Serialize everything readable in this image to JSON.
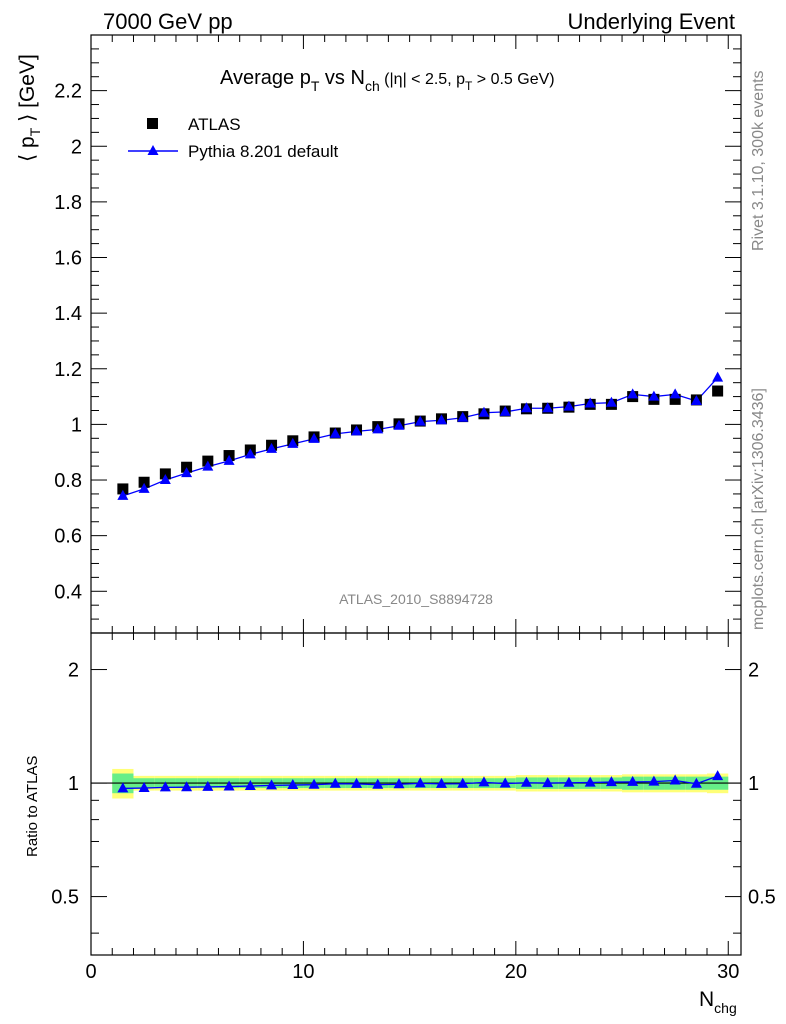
{
  "header": {
    "left": "7000 GeV pp",
    "right": "Underlying Event"
  },
  "side": {
    "rivet": "Rivet 3.1.10,  300k events",
    "mcplots": "mcplots.cern.ch [arXiv:1306.3436]"
  },
  "analysis_id": "ATLAS_2010_S8894728",
  "title": {
    "main": "Average p",
    "main_sub": "T",
    "vs": " vs N",
    "vs_sub": "ch",
    "cuts_a": " (|η| < 2.5, p",
    "cuts_sub": "T",
    "cuts_b": " > 0.5 GeV)"
  },
  "ylabel": {
    "open": "⟨ p",
    "sub": "T",
    "close": " ⟩ [GeV]"
  },
  "ratio_ylabel": "Ratio to ATLAS",
  "xlabel": {
    "main": "N",
    "sub": "chg"
  },
  "colors": {
    "data": "#000000",
    "mc": "#0000ff",
    "band_inner": "#66ee88",
    "band_outer": "#ffff77"
  },
  "chart_data": [
    {
      "type": "scatter",
      "title": "Average pT vs Nch (|η| < 2.5, pT > 0.5 GeV)",
      "xlim": [
        0,
        30.6
      ],
      "ylim": [
        0.25,
        2.4
      ],
      "yticks": [
        0.4,
        0.6,
        0.8,
        1,
        1.2,
        1.4,
        1.6,
        1.8,
        2,
        2.2
      ],
      "ytick_labels": [
        "0.4",
        "0.6",
        "0.8",
        "1",
        "1.2",
        "1.4",
        "1.6",
        "1.8",
        "2",
        "2.2"
      ],
      "series": [
        {
          "name": "ATLAS",
          "marker": "square",
          "x": [
            1.5,
            2.5,
            3.5,
            4.5,
            5.5,
            6.5,
            7.5,
            8.5,
            9.5,
            10.5,
            11.5,
            12.5,
            13.5,
            14.5,
            15.5,
            16.5,
            17.5,
            18.5,
            19.5,
            20.5,
            21.5,
            22.5,
            23.5,
            24.5,
            25.5,
            26.5,
            27.5,
            28.5,
            29.5
          ],
          "y": [
            0.768,
            0.792,
            0.822,
            0.846,
            0.868,
            0.888,
            0.908,
            0.925,
            0.941,
            0.955,
            0.969,
            0.98,
            0.992,
            1.002,
            1.012,
            1.02,
            1.028,
            1.038,
            1.048,
            1.056,
            1.058,
            1.062,
            1.072,
            1.072,
            1.1,
            1.09,
            1.09,
            1.088,
            1.12
          ]
        },
        {
          "name": "Pythia 8.201 default",
          "marker": "triangle",
          "x": [
            1.5,
            2.5,
            3.5,
            4.5,
            5.5,
            6.5,
            7.5,
            8.5,
            9.5,
            10.5,
            11.5,
            12.5,
            13.5,
            14.5,
            15.5,
            16.5,
            17.5,
            18.5,
            19.5,
            20.5,
            21.5,
            22.5,
            23.5,
            24.5,
            25.5,
            26.5,
            27.5,
            28.5,
            29.5
          ],
          "y": [
            0.743,
            0.768,
            0.8,
            0.825,
            0.848,
            0.869,
            0.892,
            0.912,
            0.93,
            0.948,
            0.966,
            0.975,
            0.982,
            0.995,
            1.01,
            1.015,
            1.024,
            1.042,
            1.045,
            1.058,
            1.058,
            1.064,
            1.075,
            1.078,
            1.108,
            1.1,
            1.108,
            1.084,
            1.168
          ]
        }
      ],
      "legend": "top-left"
    },
    {
      "type": "line",
      "ylabel": "Ratio to ATLAS",
      "xlabel": "Nchg",
      "xlim": [
        0,
        30.6
      ],
      "ylim": [
        0.35,
        2.5
      ],
      "yscale": "log",
      "xticks": [
        0,
        10,
        20,
        30
      ],
      "xtick_labels": [
        "0",
        "10",
        "20",
        "30"
      ],
      "yticks": [
        0.5,
        1,
        2
      ],
      "ytick_labels": [
        "0.5",
        "1",
        "2"
      ],
      "series": [
        {
          "name": "Pythia 8.201 default",
          "x": [
            1.5,
            2.5,
            3.5,
            4.5,
            5.5,
            6.5,
            7.5,
            8.5,
            9.5,
            10.5,
            11.5,
            12.5,
            13.5,
            14.5,
            15.5,
            16.5,
            17.5,
            18.5,
            19.5,
            20.5,
            21.5,
            22.5,
            23.5,
            24.5,
            25.5,
            26.5,
            27.5,
            28.5,
            29.5
          ],
          "y": [
            0.968,
            0.97,
            0.974,
            0.975,
            0.977,
            0.979,
            0.982,
            0.986,
            0.988,
            0.99,
            0.996,
            0.995,
            0.99,
            0.993,
            0.998,
            0.995,
            0.996,
            1.004,
            0.997,
            1.002,
            1.0,
            1.002,
            1.003,
            1.006,
            1.007,
            1.009,
            1.016,
            0.996,
            1.043
          ]
        }
      ],
      "band": {
        "x_edges": [
          1,
          2,
          3,
          4,
          5,
          6,
          7,
          8,
          9,
          10,
          11,
          12,
          13,
          14,
          15,
          16,
          17,
          18,
          19,
          20,
          21,
          22,
          23,
          24,
          25,
          26,
          27,
          28,
          29,
          30
        ],
        "inner_halfwidth": [
          0.06,
          0.03,
          0.03,
          0.03,
          0.03,
          0.03,
          0.03,
          0.03,
          0.03,
          0.03,
          0.03,
          0.03,
          0.03,
          0.03,
          0.03,
          0.03,
          0.03,
          0.03,
          0.03,
          0.035,
          0.035,
          0.035,
          0.035,
          0.035,
          0.04,
          0.04,
          0.04,
          0.04,
          0.04
        ],
        "outer_halfwidth": [
          0.09,
          0.045,
          0.045,
          0.045,
          0.045,
          0.045,
          0.045,
          0.045,
          0.045,
          0.045,
          0.045,
          0.045,
          0.045,
          0.045,
          0.045,
          0.045,
          0.045,
          0.045,
          0.045,
          0.05,
          0.05,
          0.05,
          0.05,
          0.05,
          0.055,
          0.055,
          0.055,
          0.055,
          0.06
        ]
      }
    }
  ]
}
